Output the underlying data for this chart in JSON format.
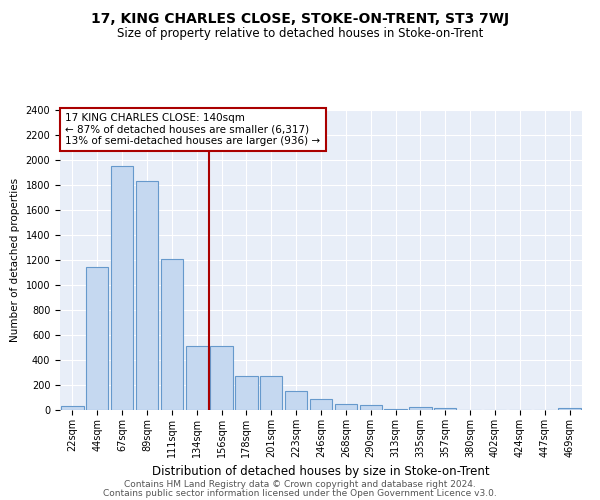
{
  "title": "17, KING CHARLES CLOSE, STOKE-ON-TRENT, ST3 7WJ",
  "subtitle": "Size of property relative to detached houses in Stoke-on-Trent",
  "xlabel": "Distribution of detached houses by size in Stoke-on-Trent",
  "ylabel": "Number of detached properties",
  "categories": [
    "22sqm",
    "44sqm",
    "67sqm",
    "89sqm",
    "111sqm",
    "134sqm",
    "156sqm",
    "178sqm",
    "201sqm",
    "223sqm",
    "246sqm",
    "268sqm",
    "290sqm",
    "313sqm",
    "335sqm",
    "357sqm",
    "380sqm",
    "402sqm",
    "424sqm",
    "447sqm",
    "469sqm"
  ],
  "values": [
    30,
    1145,
    1950,
    1830,
    1210,
    510,
    510,
    275,
    270,
    155,
    85,
    50,
    42,
    5,
    22,
    14,
    0,
    0,
    0,
    0,
    18
  ],
  "bar_color": "#c5d8f0",
  "bar_edge_color": "#6699cc",
  "vline_x": 5.5,
  "vline_color": "#aa0000",
  "annotation_title": "17 KING CHARLES CLOSE: 140sqm",
  "annotation_line1": "← 87% of detached houses are smaller (6,317)",
  "annotation_line2": "13% of semi-detached houses are larger (936) →",
  "annotation_box_color": "#aa0000",
  "ylim": [
    0,
    2400
  ],
  "yticks": [
    0,
    200,
    400,
    600,
    800,
    1000,
    1200,
    1400,
    1600,
    1800,
    2000,
    2200,
    2400
  ],
  "bg_color": "#e8eef8",
  "footer1": "Contains HM Land Registry data © Crown copyright and database right 2024.",
  "footer2": "Contains public sector information licensed under the Open Government Licence v3.0.",
  "title_fontsize": 10,
  "subtitle_fontsize": 8.5,
  "xlabel_fontsize": 8.5,
  "ylabel_fontsize": 7.5,
  "tick_fontsize": 7,
  "footer_fontsize": 6.5,
  "ann_fontsize": 7.5
}
